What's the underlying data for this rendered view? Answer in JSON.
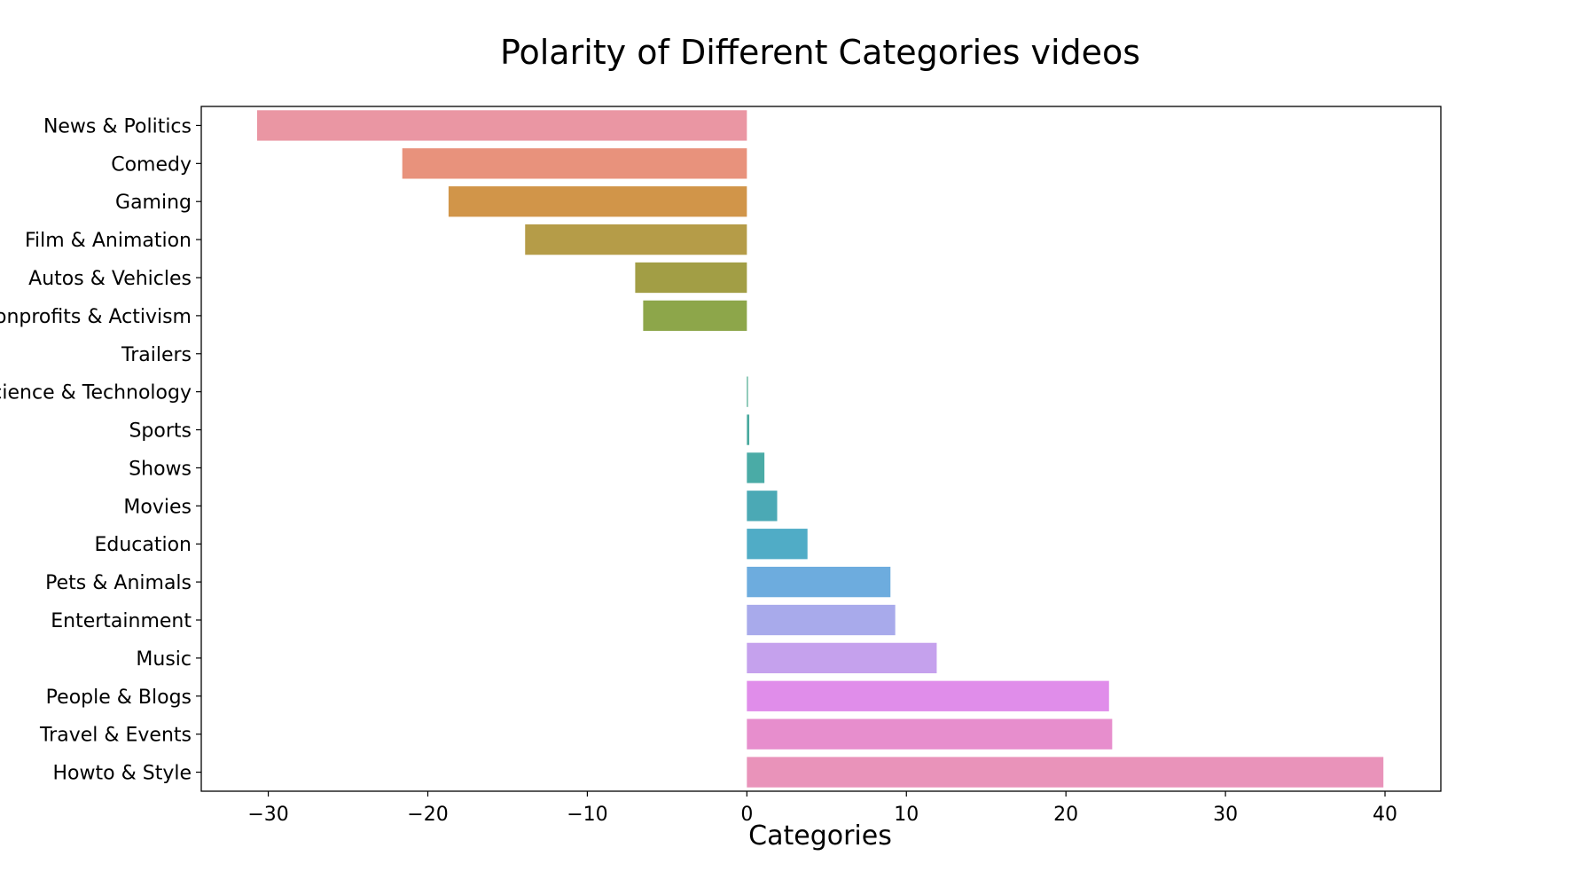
{
  "chart_data": {
    "type": "bar",
    "orientation": "horizontal",
    "title": "Polarity of Different Categories videos",
    "xlabel": "Categories",
    "ylabel": "",
    "xlim": [
      -34.2,
      43.5
    ],
    "xticks": [
      -30,
      -20,
      -10,
      0,
      10,
      20,
      30,
      40
    ],
    "xtick_labels": [
      "−30",
      "−20",
      "−10",
      "0",
      "10",
      "20",
      "30",
      "40"
    ],
    "grid": false,
    "legend": "none",
    "categories": [
      "News & Politics",
      "Comedy",
      "Gaming",
      "Film & Animation",
      "Autos & Vehicles",
      "Nonprofits & Activism",
      "Trailers",
      "Science & Technology",
      "Sports",
      "Shows",
      "Movies",
      "Education",
      "Pets & Animals",
      "Entertainment",
      "Music",
      "People & Blogs",
      "Travel & Events",
      "Howto & Style"
    ],
    "values": [
      -30.7,
      -21.6,
      -18.7,
      -13.9,
      -7.0,
      -6.5,
      0.0,
      0.05,
      0.15,
      1.1,
      1.9,
      3.8,
      9.0,
      9.3,
      11.9,
      22.7,
      22.9,
      39.9
    ],
    "colors": [
      "#ea96a3",
      "#e8927c",
      "#d19549",
      "#b59c48",
      "#a29e45",
      "#8da64a",
      "#5fa862",
      "#4aa98e",
      "#49a99e",
      "#4aaba6",
      "#4ba9b5",
      "#50acc6",
      "#6dacde",
      "#a8aaeb",
      "#c5a1ed",
      "#e08dea",
      "#e78ecd",
      "#e993ba"
    ]
  }
}
